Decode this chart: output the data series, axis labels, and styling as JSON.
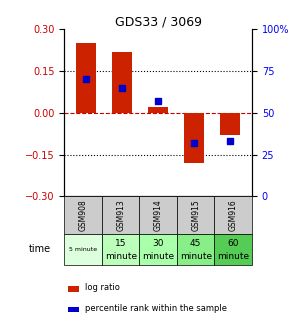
{
  "title": "GDS33 / 3069",
  "samples": [
    "GSM908",
    "GSM913",
    "GSM914",
    "GSM915",
    "GSM916"
  ],
  "log_ratios": [
    0.25,
    0.22,
    0.02,
    -0.18,
    -0.08
  ],
  "percentile_ranks": [
    70,
    65,
    57,
    32,
    33
  ],
  "ylim_left": [
    -0.3,
    0.3
  ],
  "ylim_right": [
    0,
    100
  ],
  "yticks_left": [
    -0.3,
    -0.15,
    0,
    0.15,
    0.3
  ],
  "yticks_right": [
    0,
    25,
    50,
    75,
    100
  ],
  "bar_color": "#cc2200",
  "dot_color": "#0000cc",
  "time_labels_top": [
    "5 minute",
    "15",
    "30",
    "45",
    "60"
  ],
  "time_labels_bot": [
    "",
    "minute",
    "minute",
    "minute",
    "minute"
  ],
  "time_colors": [
    "#ddffdd",
    "#bbffbb",
    "#aaffaa",
    "#88ee88",
    "#55cc55"
  ],
  "sample_bg": "#cccccc",
  "zero_line_color": "#cc0000",
  "legend_bar_label": "log ratio",
  "legend_dot_label": "percentile rank within the sample"
}
